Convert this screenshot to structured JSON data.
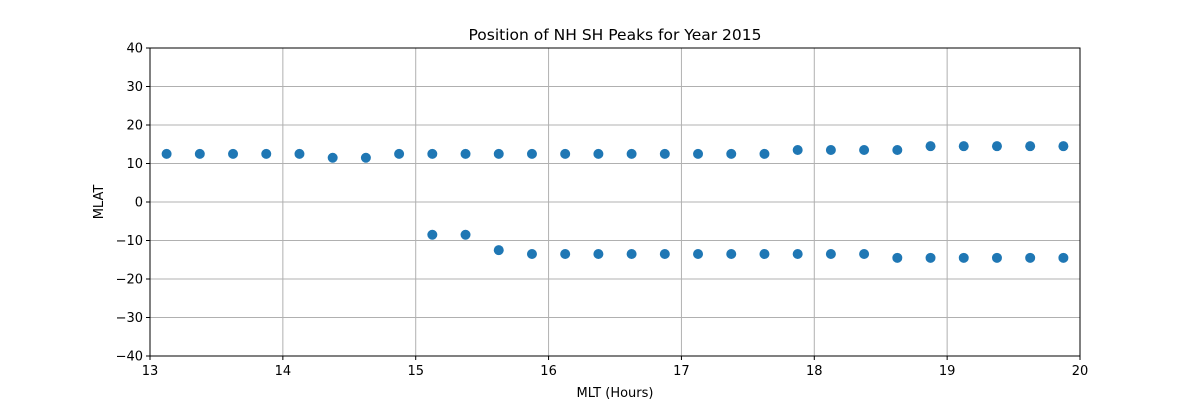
{
  "chart_data": {
    "type": "scatter",
    "title": "Position of NH SH Peaks for Year 2015",
    "xlabel": "MLT (Hours)",
    "ylabel": "MLAT",
    "xlim": [
      13,
      20
    ],
    "ylim": [
      -40,
      40
    ],
    "xticks": [
      13,
      14,
      15,
      16,
      17,
      18,
      19,
      20
    ],
    "yticks": [
      -40,
      -30,
      -20,
      -10,
      0,
      10,
      20,
      30,
      40
    ],
    "grid": true,
    "color": "#1f77b4",
    "series": [
      {
        "points": [
          [
            13.125,
            12.5
          ],
          [
            13.375,
            12.5
          ],
          [
            13.625,
            12.5
          ],
          [
            13.875,
            12.5
          ],
          [
            14.125,
            12.5
          ],
          [
            14.375,
            11.5
          ],
          [
            14.625,
            11.5
          ],
          [
            14.875,
            12.5
          ],
          [
            15.125,
            12.5
          ],
          [
            15.375,
            12.5
          ],
          [
            15.625,
            12.5
          ],
          [
            15.875,
            12.5
          ],
          [
            16.125,
            12.5
          ],
          [
            16.375,
            12.5
          ],
          [
            16.625,
            12.5
          ],
          [
            16.875,
            12.5
          ],
          [
            17.125,
            12.5
          ],
          [
            17.375,
            12.5
          ],
          [
            17.625,
            12.5
          ],
          [
            17.875,
            13.5
          ],
          [
            18.125,
            13.5
          ],
          [
            18.375,
            13.5
          ],
          [
            18.625,
            13.5
          ],
          [
            18.875,
            14.5
          ],
          [
            19.125,
            14.5
          ],
          [
            19.375,
            14.5
          ],
          [
            19.625,
            14.5
          ],
          [
            19.875,
            14.5
          ]
        ]
      },
      {
        "points": [
          [
            15.125,
            -8.5
          ],
          [
            15.375,
            -8.5
          ],
          [
            15.625,
            -12.5
          ],
          [
            15.875,
            -13.5
          ],
          [
            16.125,
            -13.5
          ],
          [
            16.375,
            -13.5
          ],
          [
            16.625,
            -13.5
          ],
          [
            16.875,
            -13.5
          ],
          [
            17.125,
            -13.5
          ],
          [
            17.375,
            -13.5
          ],
          [
            17.625,
            -13.5
          ],
          [
            17.875,
            -13.5
          ],
          [
            18.125,
            -13.5
          ],
          [
            18.375,
            -13.5
          ],
          [
            18.625,
            -14.5
          ],
          [
            18.875,
            -14.5
          ],
          [
            19.125,
            -14.5
          ],
          [
            19.375,
            -14.5
          ],
          [
            19.625,
            -14.5
          ],
          [
            19.875,
            -14.5
          ]
        ]
      }
    ]
  }
}
